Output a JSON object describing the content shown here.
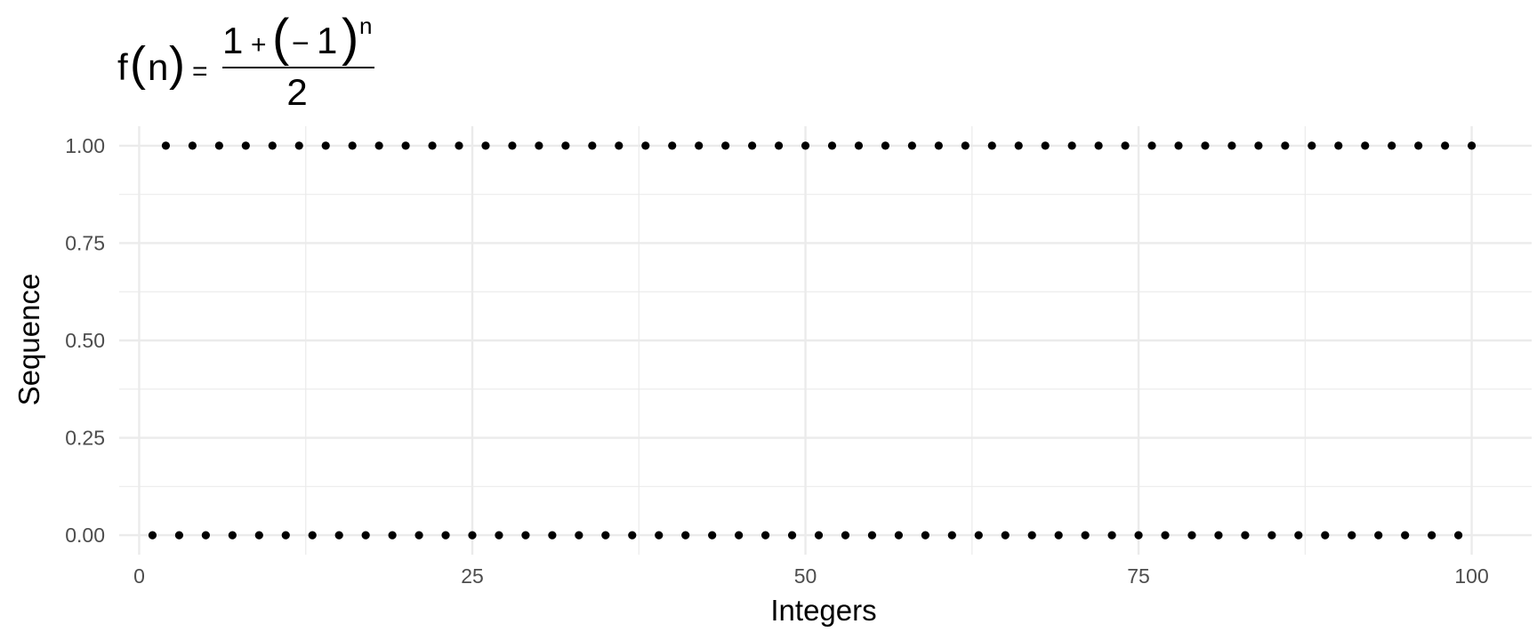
{
  "chart_data": {
    "type": "scatter",
    "title": {
      "lhs": "f",
      "var": "n",
      "equals": "=",
      "numerator_one": "1",
      "plus": "+",
      "minus": "−",
      "base_one": "1",
      "exponent": "n",
      "denominator": "2"
    },
    "xlabel": "Integers",
    "ylabel": "Sequence",
    "xlim": [
      -1.5,
      104.5
    ],
    "ylim": [
      -0.05,
      1.05
    ],
    "x_ticks": [
      0,
      25,
      50,
      75,
      100
    ],
    "x_tick_labels": [
      "0",
      "25",
      "50",
      "75",
      "100"
    ],
    "x_minor": [
      12.5,
      37.5,
      62.5,
      87.5
    ],
    "y_ticks": [
      0,
      0.25,
      0.5,
      0.75,
      1
    ],
    "y_tick_labels": [
      "0.00",
      "0.25",
      "0.50",
      "0.75",
      "1.00"
    ],
    "y_minor": [
      0.125,
      0.375,
      0.625,
      0.875
    ],
    "grid": true,
    "point_color": "#000000",
    "series": [
      {
        "x_range": [
          1,
          100
        ],
        "rule": "y = (1 + (-1)^n) / 2"
      }
    ]
  }
}
